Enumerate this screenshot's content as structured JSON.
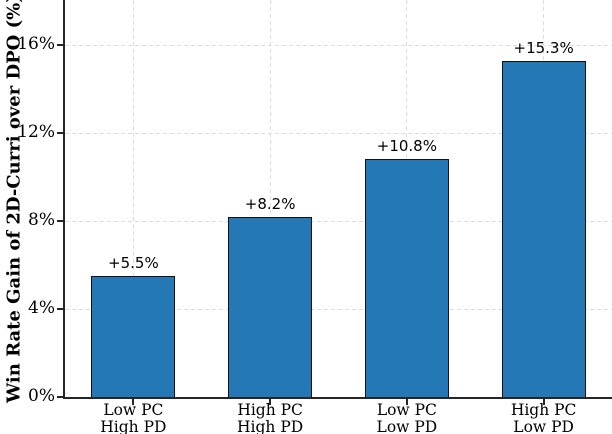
{
  "chart_data": {
    "type": "bar",
    "title": "",
    "xlabel": "",
    "ylabel": "Win Rate Gain of 2D-Curri over DPO (%)",
    "categories": [
      [
        "Low PC",
        "High PD"
      ],
      [
        "High PC",
        "High PD"
      ],
      [
        "Low PC",
        "Low PD"
      ],
      [
        "High PC",
        "Low PD"
      ]
    ],
    "values": [
      5.5,
      8.2,
      10.8,
      15.3
    ],
    "bar_value_labels": [
      "+5.5%",
      "+8.2%",
      "+10.8%",
      "+15.3%"
    ],
    "yticks": [
      0,
      4,
      8,
      12,
      16
    ],
    "ytick_labels": [
      "0%",
      "4%",
      "8%",
      "12%",
      "16%"
    ],
    "ylim": [
      0,
      18.05
    ],
    "grid": {
      "visible": true,
      "style": "dashed",
      "axes": "both"
    },
    "legend": "none",
    "colors": {
      "bar_fill": "#2378b5",
      "bar_edge": "#111111",
      "grid": "#dcdcdc",
      "axis": "#262626",
      "text": "#000000"
    }
  }
}
